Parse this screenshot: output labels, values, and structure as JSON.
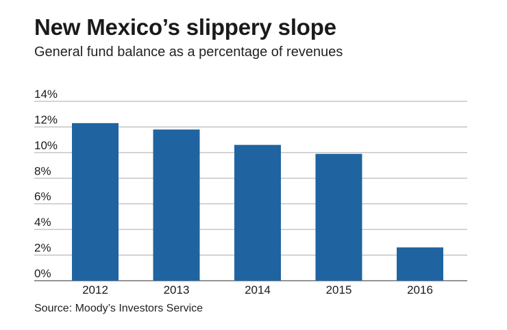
{
  "chart_data": {
    "type": "bar",
    "title": "New Mexico’s slippery slope",
    "subtitle": "General fund balance as a percentage of revenues",
    "categories": [
      "2012",
      "2013",
      "2014",
      "2015",
      "2016"
    ],
    "values": [
      12.3,
      11.8,
      10.6,
      9.9,
      2.6
    ],
    "ylim": [
      0,
      14
    ],
    "yticks": [
      0,
      2,
      4,
      6,
      8,
      10,
      12,
      14
    ],
    "ytick_labels": [
      "0%",
      "2%",
      "4%",
      "6%",
      "8%",
      "10%",
      "12%",
      "14%"
    ],
    "xlabel": "",
    "ylabel": "",
    "bar_color": "#1f64a0",
    "grid": true,
    "source": "Source: Moody’s Investors Service"
  }
}
